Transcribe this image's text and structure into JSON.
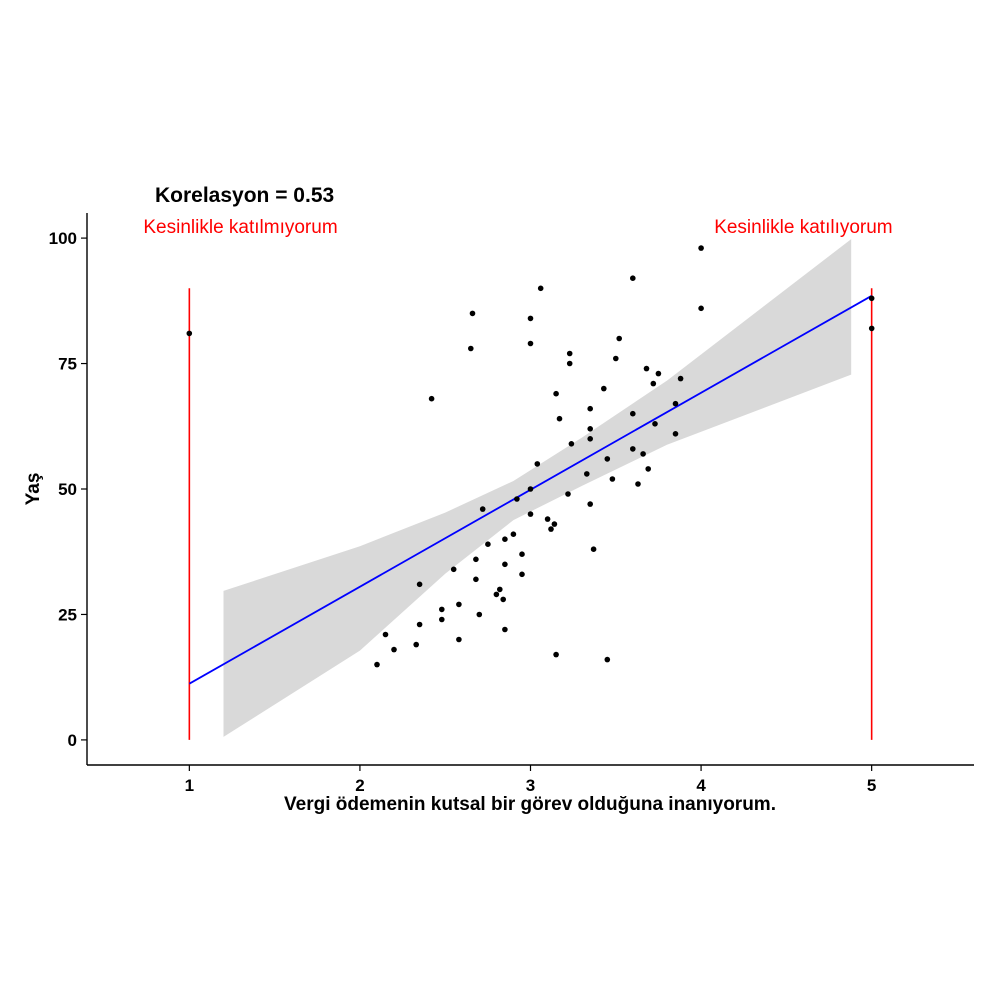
{
  "chart_data": {
    "type": "scatter",
    "title": "Korelasyon = 0.53",
    "xlabel": "Vergi ödemenin kutsal bir görev olduğuna inanıyorum.",
    "ylabel": "Yaş",
    "xlim": [
      0.4,
      5.6
    ],
    "ylim": [
      -5,
      105
    ],
    "x_ticks": [
      1,
      2,
      3,
      4,
      5
    ],
    "y_ticks": [
      0,
      25,
      50,
      75,
      100
    ],
    "grid": false,
    "colors": {
      "points": "#000000",
      "fit_line": "#0000ff",
      "ribbon": "#d9d9d9",
      "annotation": "#ff0000",
      "axis": "#000000"
    },
    "annotations": [
      {
        "text": "Kesinlikle katılmıyorum",
        "x": 1.3,
        "y": 101
      },
      {
        "text": "Kesinlikle katılıyorum",
        "x": 4.6,
        "y": 101
      }
    ],
    "reference_lines": [
      {
        "x": 1,
        "y_from": 0,
        "y_to": 90
      },
      {
        "x": 5,
        "y_from": 0,
        "y_to": 90
      }
    ],
    "fit_line": {
      "x": [
        1,
        5
      ],
      "y": [
        11.2,
        88.5
      ]
    },
    "confidence_band": {
      "x": [
        1.2,
        2.0,
        2.5,
        2.9,
        3.3,
        3.8,
        4.88
      ],
      "upper": [
        29.7,
        38.6,
        45.3,
        51.6,
        60.2,
        71.6,
        99.8
      ],
      "lower": [
        0.6,
        17.8,
        33.1,
        43.8,
        50.6,
        58.8,
        72.8
      ]
    },
    "points": [
      {
        "x": 1.0,
        "y": 81
      },
      {
        "x": 2.1,
        "y": 15
      },
      {
        "x": 2.15,
        "y": 21
      },
      {
        "x": 2.2,
        "y": 18
      },
      {
        "x": 2.33,
        "y": 19
      },
      {
        "x": 2.35,
        "y": 31
      },
      {
        "x": 2.35,
        "y": 23
      },
      {
        "x": 2.42,
        "y": 68
      },
      {
        "x": 2.48,
        "y": 26
      },
      {
        "x": 2.48,
        "y": 24
      },
      {
        "x": 2.55,
        "y": 34
      },
      {
        "x": 2.58,
        "y": 27
      },
      {
        "x": 2.58,
        "y": 20
      },
      {
        "x": 2.65,
        "y": 78
      },
      {
        "x": 2.66,
        "y": 85
      },
      {
        "x": 2.68,
        "y": 36
      },
      {
        "x": 2.68,
        "y": 32
      },
      {
        "x": 2.7,
        "y": 25
      },
      {
        "x": 2.72,
        "y": 46
      },
      {
        "x": 2.75,
        "y": 39
      },
      {
        "x": 2.8,
        "y": 29
      },
      {
        "x": 2.82,
        "y": 30
      },
      {
        "x": 2.84,
        "y": 28
      },
      {
        "x": 2.85,
        "y": 40
      },
      {
        "x": 2.85,
        "y": 35
      },
      {
        "x": 2.85,
        "y": 22
      },
      {
        "x": 2.9,
        "y": 41
      },
      {
        "x": 2.92,
        "y": 48
      },
      {
        "x": 2.95,
        "y": 37
      },
      {
        "x": 2.95,
        "y": 33
      },
      {
        "x": 3.0,
        "y": 84
      },
      {
        "x": 3.0,
        "y": 79
      },
      {
        "x": 3.0,
        "y": 50
      },
      {
        "x": 3.0,
        "y": 45
      },
      {
        "x": 3.04,
        "y": 55
      },
      {
        "x": 3.06,
        "y": 90
      },
      {
        "x": 3.1,
        "y": 44
      },
      {
        "x": 3.12,
        "y": 42
      },
      {
        "x": 3.14,
        "y": 43
      },
      {
        "x": 3.15,
        "y": 69
      },
      {
        "x": 3.15,
        "y": 17
      },
      {
        "x": 3.17,
        "y": 64
      },
      {
        "x": 3.22,
        "y": 49
      },
      {
        "x": 3.23,
        "y": 77
      },
      {
        "x": 3.23,
        "y": 75
      },
      {
        "x": 3.24,
        "y": 59
      },
      {
        "x": 3.33,
        "y": 53
      },
      {
        "x": 3.35,
        "y": 66
      },
      {
        "x": 3.35,
        "y": 62
      },
      {
        "x": 3.35,
        "y": 60
      },
      {
        "x": 3.35,
        "y": 47
      },
      {
        "x": 3.37,
        "y": 38
      },
      {
        "x": 3.43,
        "y": 70
      },
      {
        "x": 3.45,
        "y": 56
      },
      {
        "x": 3.45,
        "y": 16
      },
      {
        "x": 3.48,
        "y": 52
      },
      {
        "x": 3.5,
        "y": 76
      },
      {
        "x": 3.52,
        "y": 80
      },
      {
        "x": 3.6,
        "y": 92
      },
      {
        "x": 3.6,
        "y": 65
      },
      {
        "x": 3.6,
        "y": 58
      },
      {
        "x": 3.63,
        "y": 51
      },
      {
        "x": 3.66,
        "y": 57
      },
      {
        "x": 3.68,
        "y": 74
      },
      {
        "x": 3.69,
        "y": 54
      },
      {
        "x": 3.72,
        "y": 71
      },
      {
        "x": 3.73,
        "y": 63
      },
      {
        "x": 3.75,
        "y": 73
      },
      {
        "x": 3.85,
        "y": 67
      },
      {
        "x": 3.85,
        "y": 61
      },
      {
        "x": 3.88,
        "y": 72
      },
      {
        "x": 4.0,
        "y": 98
      },
      {
        "x": 4.0,
        "y": 86
      },
      {
        "x": 5.0,
        "y": 88
      },
      {
        "x": 5.0,
        "y": 82
      }
    ]
  }
}
